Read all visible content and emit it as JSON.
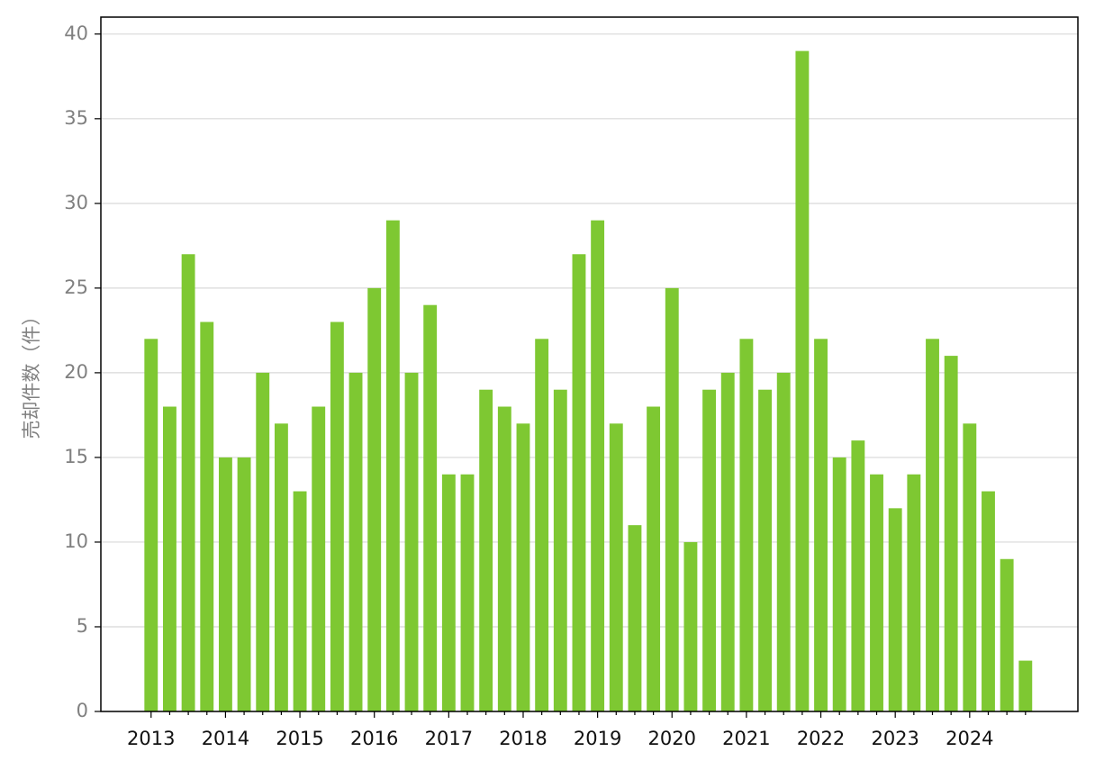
{
  "chart_data": {
    "type": "bar",
    "y_label": "売却件数（件）",
    "categories": [
      "2013",
      null,
      null,
      null,
      "2014",
      null,
      null,
      null,
      "2015",
      null,
      null,
      null,
      "2016",
      null,
      null,
      null,
      "2017",
      null,
      null,
      null,
      "2018",
      null,
      null,
      null,
      "2019",
      null,
      null,
      null,
      "2020",
      null,
      null,
      null,
      "2021",
      null,
      null,
      null,
      "2022",
      null,
      null,
      null,
      "2023",
      null,
      null,
      null,
      "2024",
      null,
      null,
      null
    ],
    "values": [
      22,
      18,
      27,
      23,
      15,
      15,
      20,
      17,
      13,
      18,
      23,
      20,
      25,
      29,
      20,
      24,
      14,
      14,
      19,
      18,
      17,
      22,
      19,
      27,
      29,
      17,
      11,
      18,
      25,
      10,
      19,
      20,
      22,
      19,
      20,
      39,
      22,
      15,
      16,
      14,
      12,
      14,
      22,
      21,
      17,
      13,
      9,
      3
    ],
    "color": "#7ec832",
    "ylim": [
      0,
      41
    ],
    "yticks": [
      0,
      5,
      10,
      15,
      20,
      25,
      30,
      35,
      40
    ],
    "grid": true
  }
}
